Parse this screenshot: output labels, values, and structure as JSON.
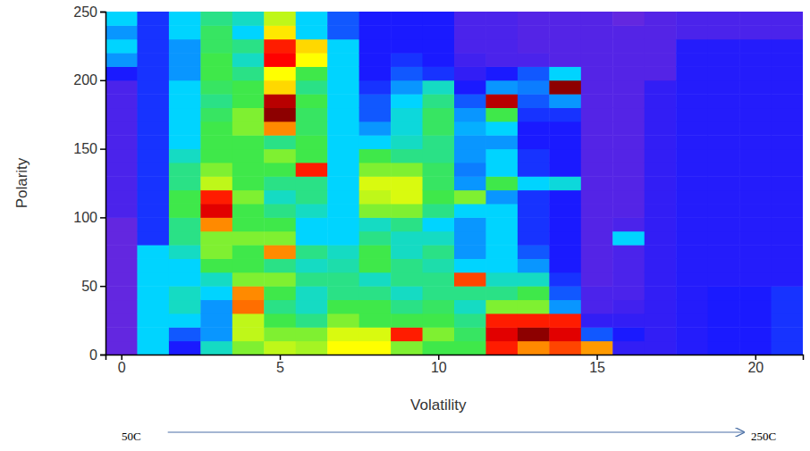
{
  "chart_data": {
    "type": "heatmap",
    "x_label": "Volatility",
    "y_label": "Polarity",
    "annotations": [
      "50C",
      "250C"
    ],
    "xlim": [
      -0.5,
      21.5
    ],
    "ylim": [
      0,
      250
    ],
    "xticks": [
      0,
      5,
      10,
      15,
      20
    ],
    "yticks": [
      0,
      50,
      100,
      150,
      200,
      250
    ],
    "x": [
      0,
      1,
      2,
      3,
      4,
      5,
      6,
      7,
      8,
      9,
      10,
      11,
      12,
      13,
      14,
      15,
      16,
      17,
      18,
      19,
      20,
      21
    ],
    "y_bins": [
      0,
      10,
      20,
      30,
      40,
      50,
      60,
      70,
      80,
      90,
      100,
      110,
      120,
      130,
      140,
      150,
      160,
      170,
      180,
      190,
      200,
      210,
      220,
      230,
      240,
      250
    ],
    "zlim": [
      0,
      100
    ],
    "cells": [
      [
        5,
        5,
        5,
        5,
        5,
        5,
        5,
        5,
        5,
        5,
        10,
        10,
        10,
        10,
        10,
        10,
        10,
        10,
        10,
        10,
        20,
        30,
        35,
        30,
        35
      ],
      [
        35,
        35,
        35,
        35,
        35,
        35,
        35,
        35,
        22,
        22,
        22,
        22,
        22,
        22,
        22,
        22,
        22,
        22,
        22,
        22,
        22,
        22,
        22,
        22,
        22
      ],
      [
        20,
        25,
        35,
        40,
        40,
        35,
        35,
        40,
        45,
        45,
        50,
        50,
        45,
        45,
        40,
        35,
        35,
        35,
        35,
        35,
        30,
        30,
        30,
        35,
        35
      ],
      [
        40,
        30,
        30,
        30,
        35,
        40,
        50,
        55,
        55,
        80,
        92,
        88,
        60,
        55,
        50,
        50,
        50,
        48,
        45,
        48,
        50,
        50,
        48,
        48,
        45
      ],
      [
        55,
        60,
        60,
        82,
        80,
        55,
        50,
        50,
        55,
        50,
        50,
        55,
        50,
        50,
        50,
        50,
        55,
        55,
        50,
        50,
        45,
        40,
        45,
        35,
        40
      ],
      [
        60,
        55,
        50,
        45,
        50,
        55,
        45,
        80,
        55,
        50,
        45,
        40,
        45,
        50,
        55,
        45,
        80,
        98,
        95,
        70,
        65,
        90,
        88,
        68,
        60
      ],
      [
        58,
        55,
        45,
        40,
        40,
        45,
        40,
        45,
        35,
        35,
        40,
        45,
        45,
        88,
        50,
        50,
        48,
        48,
        50,
        45,
        50,
        65,
        70,
        35,
        35
      ],
      [
        65,
        62,
        55,
        50,
        45,
        45,
        42,
        40,
        35,
        35,
        35,
        35,
        35,
        35,
        35,
        35,
        35,
        35,
        35,
        35,
        35,
        35,
        35,
        25,
        25
      ],
      [
        65,
        62,
        50,
        50,
        45,
        40,
        50,
        50,
        45,
        40,
        55,
        60,
        62,
        55,
        50,
        35,
        30,
        25,
        25,
        22,
        20,
        20,
        20,
        20,
        20
      ],
      [
        55,
        88,
        50,
        45,
        40,
        45,
        45,
        40,
        40,
        45,
        55,
        62,
        62,
        55,
        45,
        40,
        38,
        38,
        35,
        30,
        25,
        22,
        20,
        20,
        20
      ],
      [
        50,
        55,
        50,
        48,
        45,
        45,
        42,
        45,
        40,
        35,
        45,
        50,
        48,
        48,
        45,
        45,
        48,
        48,
        45,
        40,
        22,
        20,
        20,
        20,
        20
      ],
      [
        50,
        48,
        45,
        40,
        45,
        85,
        35,
        30,
        30,
        30,
        35,
        55,
        30,
        28,
        30,
        30,
        32,
        30,
        25,
        20,
        15,
        12,
        10,
        10,
        10
      ],
      [
        88,
        92,
        88,
        55,
        45,
        40,
        35,
        35,
        35,
        35,
        35,
        30,
        50,
        35,
        35,
        30,
        35,
        50,
        95,
        30,
        20,
        10,
        10,
        10,
        10
      ],
      [
        80,
        98,
        88,
        55,
        50,
        40,
        30,
        25,
        22,
        22,
        22,
        22,
        35,
        22,
        22,
        20,
        20,
        22,
        25,
        28,
        25,
        10,
        8,
        8,
        8
      ],
      [
        85,
        92,
        88,
        30,
        25,
        22,
        20,
        20,
        20,
        20,
        20,
        20,
        38,
        20,
        20,
        20,
        20,
        22,
        30,
        98,
        35,
        8,
        8,
        8,
        8
      ],
      [
        78,
        25,
        15,
        10,
        10,
        8,
        8,
        8,
        8,
        8,
        8,
        8,
        8,
        8,
        8,
        8,
        8,
        8,
        8,
        8,
        8,
        8,
        8,
        8,
        8
      ],
      [
        15,
        20,
        15,
        12,
        10,
        10,
        10,
        10,
        35,
        10,
        8,
        8,
        8,
        8,
        8,
        8,
        8,
        8,
        8,
        8,
        8,
        8,
        8,
        8,
        5
      ],
      [
        15,
        15,
        15,
        15,
        15,
        15,
        15,
        15,
        15,
        15,
        15,
        15,
        15,
        15,
        15,
        15,
        15,
        15,
        15,
        15,
        8,
        8,
        8,
        8,
        8
      ],
      [
        18,
        18,
        18,
        18,
        18,
        18,
        18,
        18,
        18,
        18,
        18,
        18,
        18,
        18,
        18,
        18,
        18,
        18,
        18,
        18,
        18,
        18,
        18,
        10,
        10
      ],
      [
        20,
        20,
        20,
        20,
        20,
        18,
        18,
        18,
        18,
        18,
        18,
        18,
        18,
        18,
        18,
        18,
        18,
        18,
        18,
        18,
        18,
        18,
        18,
        10,
        10
      ],
      [
        20,
        20,
        20,
        20,
        20,
        18,
        18,
        18,
        18,
        18,
        18,
        18,
        18,
        18,
        18,
        18,
        18,
        18,
        18,
        18,
        18,
        18,
        18,
        10,
        10
      ],
      [
        22,
        22,
        22,
        22,
        22,
        18,
        18,
        18,
        18,
        18,
        18,
        18,
        18,
        18,
        18,
        18,
        18,
        18,
        18,
        18,
        18,
        18,
        18,
        10,
        10
      ]
    ]
  }
}
